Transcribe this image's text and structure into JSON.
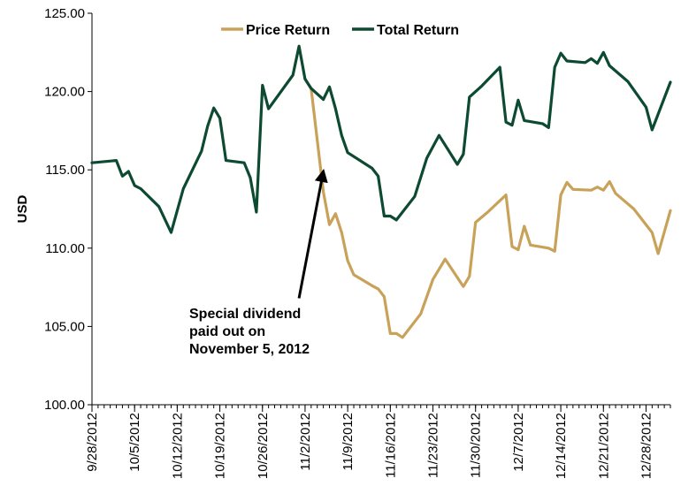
{
  "chart_data": {
    "type": "line",
    "ylabel": "USD",
    "ylim": [
      100,
      125
    ],
    "y_ticks": [
      "100.00",
      "105.00",
      "110.00",
      "115.00",
      "120.00",
      "125.00"
    ],
    "x_range": [
      "2012-09-28",
      "2013-01-01"
    ],
    "x_ticks": [
      "9/28/2012",
      "10/5/2012",
      "10/12/2012",
      "10/19/2012",
      "10/26/2012",
      "11/2/2012",
      "11/9/2012",
      "11/16/2012",
      "11/23/2012",
      "11/30/2012",
      "12/7/2012",
      "12/14/2012",
      "12/21/2012",
      "12/28/2012"
    ],
    "grid": false,
    "legend_position": "top-center",
    "series": [
      {
        "name": "Price Return",
        "color": "#c9a25a",
        "points": [
          [
            "2012-11-02",
            120.8
          ],
          [
            "2012-11-03",
            120.2
          ],
          [
            "2012-11-05",
            113.6
          ],
          [
            "2012-11-06",
            111.5
          ],
          [
            "2012-11-07",
            112.2
          ],
          [
            "2012-11-08",
            111.0
          ],
          [
            "2012-11-09",
            109.2
          ],
          [
            "2012-11-10",
            108.3
          ],
          [
            "2012-11-13",
            107.6
          ],
          [
            "2012-11-14",
            107.4
          ],
          [
            "2012-11-15",
            106.9
          ],
          [
            "2012-11-16",
            104.55
          ],
          [
            "2012-11-17",
            104.55
          ],
          [
            "2012-11-18",
            104.3
          ],
          [
            "2012-11-21",
            105.8
          ],
          [
            "2012-11-23",
            108.0
          ],
          [
            "2012-11-25",
            109.3
          ],
          [
            "2012-11-28",
            107.55
          ],
          [
            "2012-11-29",
            108.2
          ],
          [
            "2012-11-30",
            111.65
          ],
          [
            "2012-12-02",
            112.3
          ],
          [
            "2012-12-05",
            113.4
          ],
          [
            "2012-12-06",
            110.1
          ],
          [
            "2012-12-07",
            109.9
          ],
          [
            "2012-12-08",
            111.4
          ],
          [
            "2012-12-09",
            110.2
          ],
          [
            "2012-12-12",
            110.0
          ],
          [
            "2012-12-13",
            109.8
          ],
          [
            "2012-12-14",
            113.4
          ],
          [
            "2012-12-15",
            114.2
          ],
          [
            "2012-12-16",
            113.75
          ],
          [
            "2012-12-19",
            113.7
          ],
          [
            "2012-12-20",
            113.9
          ],
          [
            "2012-12-21",
            113.7
          ],
          [
            "2012-12-22",
            114.25
          ],
          [
            "2012-12-23",
            113.5
          ],
          [
            "2012-12-26",
            112.5
          ],
          [
            "2012-12-29",
            111.0
          ],
          [
            "2012-12-30",
            109.65
          ],
          [
            "2013-01-01",
            112.4
          ]
        ]
      },
      {
        "name": "Total Return",
        "color": "#0d4a32",
        "points": [
          [
            "2012-09-28",
            115.45
          ],
          [
            "2012-10-02",
            115.6
          ],
          [
            "2012-10-03",
            114.6
          ],
          [
            "2012-10-04",
            114.9
          ],
          [
            "2012-10-05",
            114.0
          ],
          [
            "2012-10-06",
            113.8
          ],
          [
            "2012-10-09",
            112.65
          ],
          [
            "2012-10-11",
            111.0
          ],
          [
            "2012-10-13",
            113.8
          ],
          [
            "2012-10-16",
            116.2
          ],
          [
            "2012-10-17",
            117.8
          ],
          [
            "2012-10-18",
            118.95
          ],
          [
            "2012-10-19",
            118.3
          ],
          [
            "2012-10-20",
            115.6
          ],
          [
            "2012-10-23",
            115.45
          ],
          [
            "2012-10-24",
            114.5
          ],
          [
            "2012-10-25",
            112.3
          ],
          [
            "2012-10-26",
            120.4
          ],
          [
            "2012-10-27",
            118.9
          ],
          [
            "2012-10-31",
            121.05
          ],
          [
            "2012-11-01",
            122.9
          ],
          [
            "2012-11-02",
            120.8
          ],
          [
            "2012-11-03",
            120.2
          ],
          [
            "2012-11-05",
            119.5
          ],
          [
            "2012-11-06",
            120.3
          ],
          [
            "2012-11-07",
            118.9
          ],
          [
            "2012-11-08",
            117.2
          ],
          [
            "2012-11-09",
            116.1
          ],
          [
            "2012-11-13",
            115.1
          ],
          [
            "2012-11-14",
            114.6
          ],
          [
            "2012-11-15",
            112.05
          ],
          [
            "2012-11-16",
            112.05
          ],
          [
            "2012-11-17",
            111.8
          ],
          [
            "2012-11-20",
            113.3
          ],
          [
            "2012-11-22",
            115.75
          ],
          [
            "2012-11-24",
            117.2
          ],
          [
            "2012-11-27",
            115.35
          ],
          [
            "2012-11-28",
            116.0
          ],
          [
            "2012-11-29",
            119.65
          ],
          [
            "2012-12-01",
            120.35
          ],
          [
            "2012-12-04",
            121.55
          ],
          [
            "2012-12-05",
            118.05
          ],
          [
            "2012-12-06",
            117.85
          ],
          [
            "2012-12-07",
            119.45
          ],
          [
            "2012-12-08",
            118.15
          ],
          [
            "2012-12-11",
            117.95
          ],
          [
            "2012-12-12",
            117.7
          ],
          [
            "2012-12-13",
            121.55
          ],
          [
            "2012-12-14",
            122.45
          ],
          [
            "2012-12-15",
            121.95
          ],
          [
            "2012-12-18",
            121.85
          ],
          [
            "2012-12-19",
            122.1
          ],
          [
            "2012-12-20",
            121.8
          ],
          [
            "2012-12-21",
            122.5
          ],
          [
            "2012-12-22",
            121.65
          ],
          [
            "2012-12-25",
            120.65
          ],
          [
            "2012-12-28",
            119.0
          ],
          [
            "2012-12-29",
            117.55
          ],
          [
            "2013-01-01",
            120.6
          ]
        ]
      }
    ],
    "annotations": [
      {
        "lines": [
          "Special dividend",
          "paid out on",
          "November 5, 2012"
        ],
        "arrow_from": [
          "2012-11-01",
          106.8
        ],
        "arrow_to": [
          "2012-11-05",
          114.9
        ]
      }
    ]
  }
}
